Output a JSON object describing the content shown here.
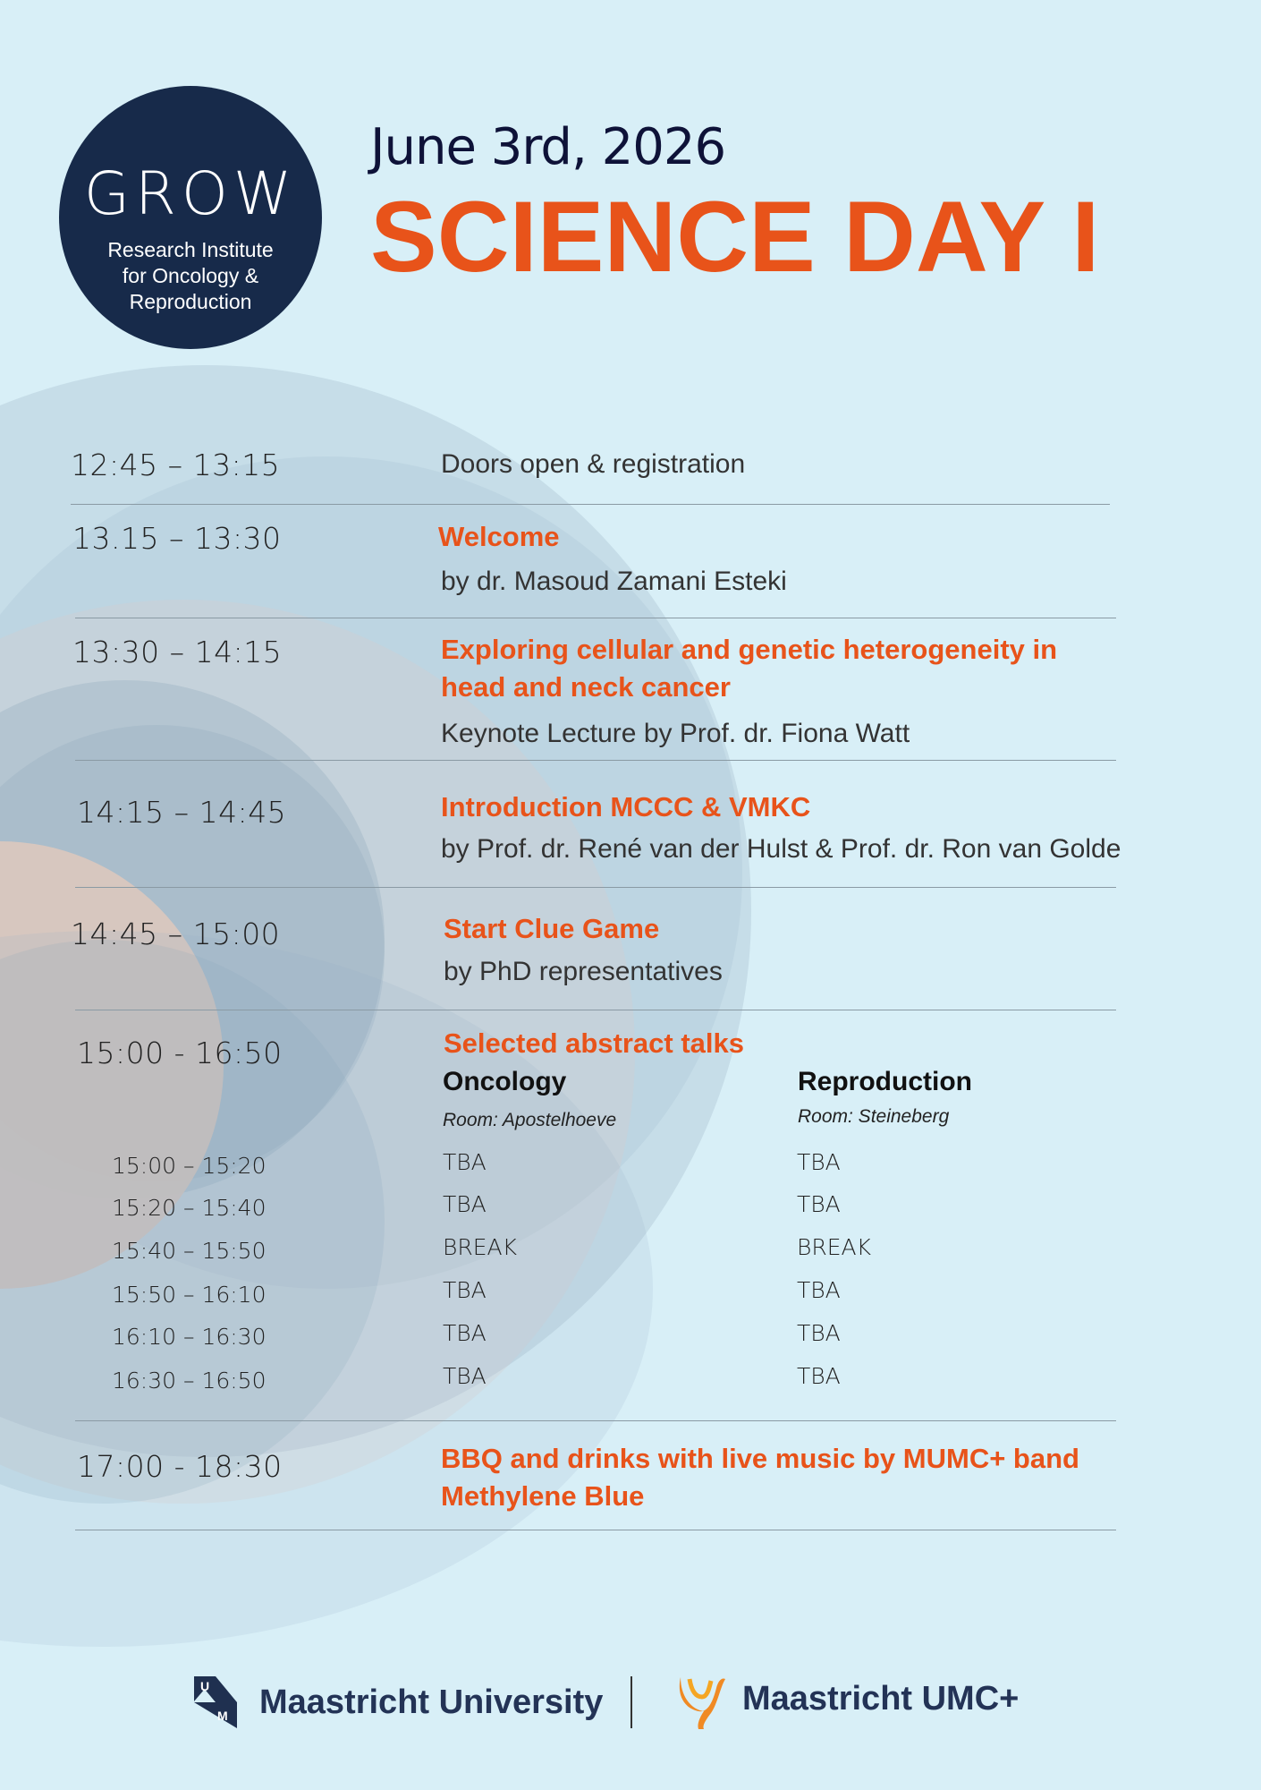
{
  "header": {
    "logo": {
      "wordmark": "GROW",
      "lines": [
        "Research Institute",
        "for Oncology &",
        "Reproduction"
      ]
    },
    "date": "June 3rd, 2026",
    "title": "SCIENCE DAY I"
  },
  "schedule": [
    {
      "time": "12:45 – 13:15",
      "subtitle": "Doors open & registration"
    },
    {
      "time": "13.15 – 13:30",
      "title": "Welcome",
      "subtitle": "by dr. Masoud Zamani Esteki"
    },
    {
      "time": "13:30 – 14:15",
      "title_lines": [
        "Exploring cellular and genetic heterogeneity in",
        "head and neck cancer"
      ],
      "subtitle": "Keynote Lecture by Prof. dr. Fiona Watt"
    },
    {
      "time": "14:15 – 14:45",
      "title": "Introduction MCCC & VMKC",
      "subtitle": "by Prof. dr. René van der Hulst & Prof. dr. Ron van Golde"
    },
    {
      "time": "14:45 – 15:00",
      "title": "Start Clue Game",
      "subtitle": "by PhD representatives"
    },
    {
      "time": "15:00 - 16:50",
      "title": "Selected abstract talks"
    },
    {
      "time": "17:00 - 18:30",
      "title_lines": [
        "BBQ and drinks with live music by MUMC+ band",
        "Methylene Blue"
      ]
    }
  ],
  "abstract_talks": {
    "columns": [
      {
        "name": "Oncology",
        "room": "Room: Apostelhoeve"
      },
      {
        "name": "Reproduction",
        "room": "Room: Steineberg"
      }
    ],
    "rows": [
      {
        "time": "15:00 – 15:20",
        "oncology": "TBA",
        "reproduction": "TBA"
      },
      {
        "time": "15:20 – 15:40",
        "oncology": "TBA",
        "reproduction": "TBA"
      },
      {
        "time": "15:40 – 15:50",
        "oncology": "BREAK",
        "reproduction": "BREAK"
      },
      {
        "time": "15:50 – 16:10",
        "oncology": "TBA",
        "reproduction": "TBA"
      },
      {
        "time": "16:10 – 16:30",
        "oncology": "TBA",
        "reproduction": "TBA"
      },
      {
        "time": "16:30 – 16:50",
        "oncology": "TBA",
        "reproduction": "TBA"
      }
    ]
  },
  "footer": {
    "um_logo_letters": [
      "U",
      "M"
    ],
    "um_name": "Maastricht University",
    "umc_name": "Maastricht UMC+"
  },
  "colors": {
    "accent": "#e8531a",
    "navy": "#172a4a",
    "background": "#d8eff7"
  }
}
